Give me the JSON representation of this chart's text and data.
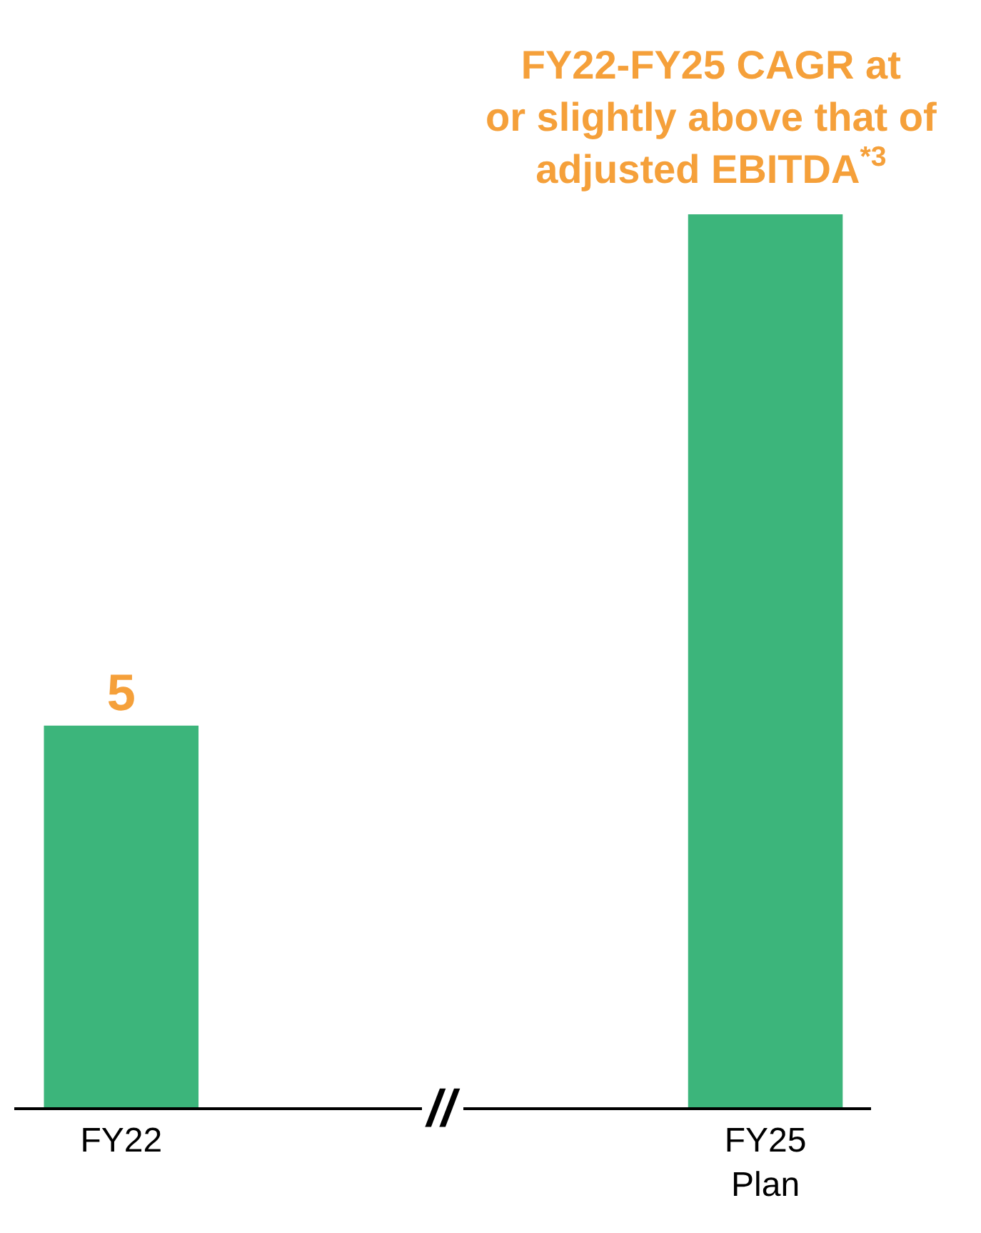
{
  "chart_data": {
    "type": "bar",
    "ylim": [
      0,
      11.7
    ],
    "tick_labels": "x",
    "categories": [
      "FY22",
      "FY25 Plan"
    ],
    "values": [
      5,
      11.7
    ],
    "value_labels": [
      "5",
      null
    ],
    "color": "#3cb57b",
    "annotations": [
      "FY22-FY25 CAGR at\nor slightly above that of\nadjusted EBITDA$^{*3}$",
      "//"
    ],
    "legend": false
  }
}
